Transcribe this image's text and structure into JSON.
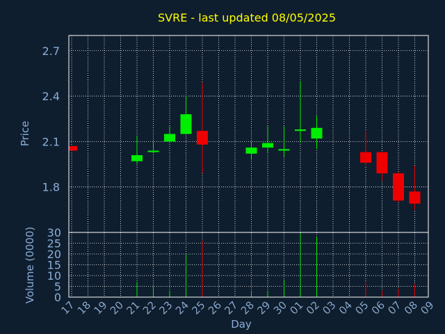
{
  "colors": {
    "background": "#0f1e2e",
    "frame": "#ffffff",
    "grid": "#ffffff",
    "title": "#ffff00",
    "axis_text": "#8aaed8",
    "axis_title": "#8aaed8",
    "day_label": "#000000",
    "up": "#00ee00",
    "down": "#ee0000"
  },
  "chart_data": [
    {
      "type": "candlestick",
      "title": "SVRE - last updated 08/05/2025",
      "ylabel": "Price",
      "xlabel": "Day",
      "x_ticks": [
        "17",
        "18",
        "19",
        "20",
        "21",
        "22",
        "23",
        "24",
        "25",
        "26",
        "27",
        "28",
        "29",
        "30",
        "01",
        "02",
        "03",
        "04",
        "05",
        "06",
        "07",
        "08",
        "09"
      ],
      "y_ticks": [
        1.8,
        2.1,
        2.4,
        2.7
      ],
      "y_tick_labels": [
        "1.8",
        "2.1",
        "2.4",
        "2.7"
      ],
      "ylim": [
        1.5,
        2.8
      ],
      "grid": true,
      "candles": [
        {
          "day": "17",
          "open": 2.07,
          "close": 2.04,
          "high": 2.07,
          "low": 2.04
        },
        {
          "day": "21",
          "open": 1.97,
          "close": 2.01,
          "high": 2.14,
          "low": 1.95
        },
        {
          "day": "22",
          "open": 2.03,
          "close": 2.04,
          "high": 2.1,
          "low": 2.03
        },
        {
          "day": "23",
          "open": 2.1,
          "close": 2.15,
          "high": 2.2,
          "low": 2.09
        },
        {
          "day": "24",
          "open": 2.15,
          "close": 2.28,
          "high": 2.4,
          "low": 2.15
        },
        {
          "day": "25",
          "open": 2.17,
          "close": 2.08,
          "high": 2.49,
          "low": 1.89
        },
        {
          "day": "28",
          "open": 2.02,
          "close": 2.06,
          "high": 2.1,
          "low": 1.98
        },
        {
          "day": "29",
          "open": 2.06,
          "close": 2.09,
          "high": 2.2,
          "low": 2.03
        },
        {
          "day": "30",
          "open": 2.04,
          "close": 2.05,
          "high": 2.2,
          "low": 2.0
        },
        {
          "day": "01",
          "open": 2.17,
          "close": 2.18,
          "high": 2.5,
          "low": 2.09
        },
        {
          "day": "02",
          "open": 2.12,
          "close": 2.19,
          "high": 2.27,
          "low": 2.05
        },
        {
          "day": "05",
          "open": 2.03,
          "close": 1.96,
          "high": 2.17,
          "low": 1.94
        },
        {
          "day": "06",
          "open": 2.03,
          "close": 1.89,
          "high": 2.03,
          "low": 1.84
        },
        {
          "day": "07",
          "open": 1.89,
          "close": 1.71,
          "high": 1.9,
          "low": 1.7
        },
        {
          "day": "08",
          "open": 1.77,
          "close": 1.69,
          "high": 1.94,
          "low": 1.65
        }
      ]
    },
    {
      "type": "bar",
      "ylabel": "Volume (0000)",
      "y_ticks": [
        0,
        5,
        10,
        15,
        20,
        25,
        30
      ],
      "y_tick_labels": [
        "0",
        "5",
        "10",
        "15",
        "20",
        "25",
        "30"
      ],
      "ylim": [
        0,
        30
      ],
      "grid": true,
      "bars": [
        {
          "day": "17",
          "value": 0.3,
          "direction": "down"
        },
        {
          "day": "21",
          "value": 7,
          "direction": "up"
        },
        {
          "day": "22",
          "value": 5,
          "direction": "up"
        },
        {
          "day": "23",
          "value": 3,
          "direction": "up"
        },
        {
          "day": "24",
          "value": 20,
          "direction": "up"
        },
        {
          "day": "25",
          "value": 26,
          "direction": "down"
        },
        {
          "day": "28",
          "value": 3,
          "direction": "up"
        },
        {
          "day": "29",
          "value": 3,
          "direction": "up"
        },
        {
          "day": "30",
          "value": 8,
          "direction": "up"
        },
        {
          "day": "01",
          "value": 30,
          "direction": "up"
        },
        {
          "day": "02",
          "value": 28,
          "direction": "up"
        },
        {
          "day": "05",
          "value": 7,
          "direction": "down"
        },
        {
          "day": "06",
          "value": 3,
          "direction": "down"
        },
        {
          "day": "07",
          "value": 4,
          "direction": "down"
        },
        {
          "day": "08",
          "value": 6,
          "direction": "down"
        }
      ]
    }
  ]
}
